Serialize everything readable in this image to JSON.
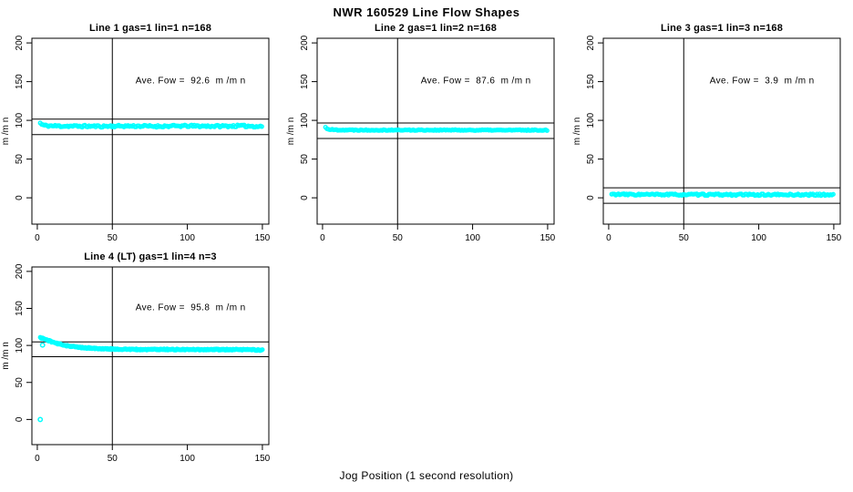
{
  "page_title": "NWR  160529  Line Flow Shapes",
  "xlabel": "Jog Position (1 second resolution)",
  "ylabel": "m /m n",
  "colors": {
    "points": "#00ffff",
    "axis": "#000000",
    "background": "#ffffff"
  },
  "axes": {
    "xlim": [
      -3.6,
      154.3
    ],
    "ylim": [
      -34,
      206
    ],
    "x_ticks": [
      0,
      50,
      100,
      150
    ],
    "y_ticks": [
      0,
      50,
      100,
      150,
      200
    ],
    "grid": false
  },
  "chart_data": [
    {
      "type": "scatter",
      "title": "Line 1 gas=1 lin=1 n=168",
      "annotation": "Ave. Fow =  92.6  m /m n",
      "ave_flow": 92.6,
      "n": 168,
      "ref_vline_x": 50,
      "ref_hlines_y": [
        101.6,
        81.6
      ],
      "x_range": [
        2,
        150
      ],
      "step": 0.9,
      "jitter": 1.3,
      "seed": 11,
      "profile": [
        [
          2,
          96.5
        ],
        [
          3,
          94.5
        ],
        [
          5,
          93.3
        ],
        [
          10,
          92.8
        ],
        [
          20,
          92.6
        ],
        [
          40,
          92.4
        ],
        [
          60,
          92.7
        ],
        [
          80,
          92.4
        ],
        [
          100,
          92.8
        ],
        [
          120,
          92.5
        ],
        [
          135,
          92.9
        ],
        [
          150,
          92.2
        ]
      ],
      "extra_points": []
    },
    {
      "type": "scatter",
      "title": "Line 2 gas=1 lin=2 n=168",
      "annotation": "Ave. Fow =  87.6  m /m n",
      "ave_flow": 87.6,
      "n": 168,
      "ref_vline_x": 50,
      "ref_hlines_y": [
        96.6,
        76.6
      ],
      "x_range": [
        2,
        150
      ],
      "step": 0.9,
      "jitter": 0.6,
      "seed": 22,
      "profile": [
        [
          2,
          91
        ],
        [
          3,
          89.3
        ],
        [
          5,
          88.2
        ],
        [
          8,
          87.8
        ],
        [
          15,
          87.6
        ],
        [
          40,
          87.5
        ],
        [
          80,
          87.5
        ],
        [
          120,
          87.4
        ],
        [
          150,
          87.4
        ]
      ],
      "extra_points": []
    },
    {
      "type": "scatter",
      "title": "Line 3 gas=1 lin=3 n=168",
      "annotation": "Ave. Fow =  3.9  m /m n",
      "ave_flow": 3.9,
      "n": 168,
      "ref_vline_x": 50,
      "ref_hlines_y": [
        12.9,
        -7.1
      ],
      "x_range": [
        2,
        150
      ],
      "step": 0.9,
      "jitter": 1.1,
      "seed": 33,
      "profile": [
        [
          2,
          4.6
        ],
        [
          10,
          4.3
        ],
        [
          50,
          4.1
        ],
        [
          100,
          4
        ],
        [
          150,
          4
        ]
      ],
      "extra_points": []
    },
    {
      "type": "scatter",
      "title": "Line 4 (LT) gas=1 lin=4 n=3",
      "annotation": "Ave. Fow =  95.8  m /m n",
      "ave_flow": 95.8,
      "n": 3,
      "ref_vline_x": 50,
      "ref_hlines_y": [
        104.8,
        84.8
      ],
      "x_range": [
        2,
        150
      ],
      "step": 0.5,
      "jitter": 0.8,
      "seed": 44,
      "profile": [
        [
          2,
          110.5
        ],
        [
          3,
          110
        ],
        [
          4,
          109.3
        ],
        [
          6,
          107.8
        ],
        [
          8,
          106.2
        ],
        [
          10,
          104.8
        ],
        [
          13,
          102.8
        ],
        [
          16,
          101.2
        ],
        [
          20,
          99.6
        ],
        [
          24,
          98.4
        ],
        [
          28,
          97.4
        ],
        [
          33,
          96.6
        ],
        [
          38,
          96
        ],
        [
          44,
          95.5
        ],
        [
          50,
          95.2
        ],
        [
          58,
          94.8
        ],
        [
          70,
          94.5
        ],
        [
          85,
          94.7
        ],
        [
          100,
          94.3
        ],
        [
          115,
          94.6
        ],
        [
          130,
          94.2
        ],
        [
          140,
          94.5
        ],
        [
          150,
          93.6
        ]
      ],
      "extra_points": [
        [
          2,
          0
        ],
        [
          3.5,
          100.5
        ]
      ]
    }
  ]
}
